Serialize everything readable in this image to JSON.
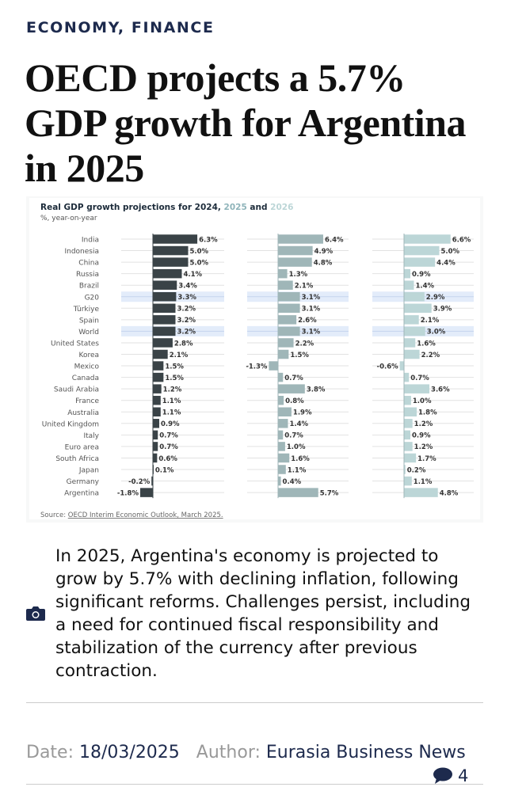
{
  "category": "ECONOMY, FINANCE",
  "headline": "OECD projects a 5.7% GDP growth for Argentina in 2025",
  "chart_data": {
    "type": "bar",
    "title_prefix": "Real GDP growth projections for 2024, ",
    "title_2025": "2025",
    "title_and": " and ",
    "title_2026": "2026",
    "subtitle": "%, year-on-year",
    "categories": [
      "India",
      "Indonesia",
      "China",
      "Russia",
      "Brazil",
      "G20",
      "Türkiye",
      "Spain",
      "World",
      "United States",
      "Korea",
      "Mexico",
      "Canada",
      "Saudi Arabia",
      "France",
      "Australia",
      "United Kingdom",
      "Italy",
      "Euro area",
      "South Africa",
      "Japan",
      "Germany",
      "Argentina"
    ],
    "highlighted": [
      "G20",
      "World"
    ],
    "series": [
      {
        "name": "2024",
        "color": "#3a4347",
        "values": [
          6.3,
          5.0,
          5.0,
          4.1,
          3.4,
          3.3,
          3.2,
          3.2,
          3.2,
          2.8,
          2.1,
          1.5,
          1.5,
          1.2,
          1.1,
          1.1,
          0.9,
          0.7,
          0.7,
          0.6,
          0.1,
          -0.2,
          -1.8
        ]
      },
      {
        "name": "2025",
        "color": "#9fb6b8",
        "values": [
          6.4,
          4.9,
          4.8,
          1.3,
          2.1,
          3.1,
          3.1,
          2.6,
          3.1,
          2.2,
          1.5,
          -1.3,
          0.7,
          3.8,
          0.8,
          1.9,
          1.4,
          0.7,
          1.0,
          1.6,
          1.1,
          0.4,
          5.7
        ]
      },
      {
        "name": "2026",
        "color": "#bcd6d7",
        "values": [
          6.6,
          5.0,
          4.4,
          0.9,
          1.4,
          2.9,
          3.9,
          2.1,
          3.0,
          1.6,
          2.2,
          -0.6,
          0.7,
          3.6,
          1.0,
          1.8,
          1.2,
          0.9,
          1.2,
          1.7,
          0.2,
          1.1,
          4.8
        ]
      }
    ],
    "source_label": "Source: ",
    "source_link": "OECD Interim Economic Outlook, March 2025."
  },
  "caption": "In 2025, Argentina's economy is projected to grow by 5.7% with declining inflation, following significant reforms. Challenges persist, including a need for continued fiscal responsibility and stabilization of the currency after previous contraction.",
  "meta": {
    "date_label": "Date:",
    "date": "18/03/2025",
    "author_label": "Author:",
    "author": "Eurasia Business News",
    "comments": "4"
  }
}
